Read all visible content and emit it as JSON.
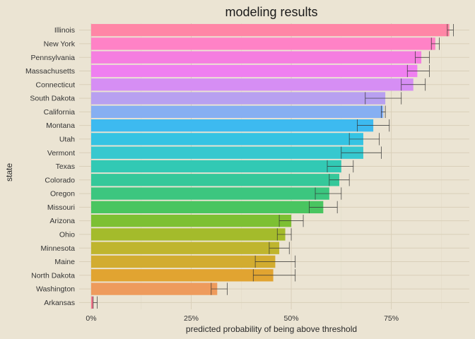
{
  "chart_data": {
    "type": "bar",
    "orientation": "horizontal",
    "title": "modeling results",
    "xlabel": "predicted probability of being above threshold",
    "ylabel": "state",
    "xlim": [
      -0.03,
      0.945
    ],
    "xticks": [
      0,
      0.25,
      0.5,
      0.75
    ],
    "xtick_labels": [
      "0%",
      "25%",
      "50%",
      "75%"
    ],
    "grid": true,
    "legend": "none",
    "categories": [
      "Illinois",
      "New York",
      "Pennsylvania",
      "Massachusetts",
      "Connecticut",
      "South Dakota",
      "California",
      "Montana",
      "Utah",
      "Vermont",
      "Texas",
      "Colorado",
      "Oregon",
      "Missouri",
      "Arizona",
      "Ohio",
      "Minnesota",
      "Maine",
      "North Dakota",
      "Washington",
      "Arkansas"
    ],
    "values": [
      0.895,
      0.86,
      0.825,
      0.815,
      0.805,
      0.735,
      0.73,
      0.705,
      0.68,
      0.68,
      0.625,
      0.62,
      0.595,
      0.58,
      0.5,
      0.485,
      0.47,
      0.46,
      0.455,
      0.315,
      0.005
    ],
    "error_low": [
      0.89,
      0.85,
      0.81,
      0.79,
      0.775,
      0.685,
      0.725,
      0.665,
      0.645,
      0.625,
      0.59,
      0.595,
      0.56,
      0.545,
      0.47,
      0.465,
      0.445,
      0.41,
      0.405,
      0.3,
      0.005
    ],
    "error_high": [
      0.905,
      0.87,
      0.845,
      0.845,
      0.835,
      0.775,
      0.735,
      0.745,
      0.72,
      0.725,
      0.655,
      0.645,
      0.625,
      0.615,
      0.53,
      0.5,
      0.495,
      0.51,
      0.51,
      0.34,
      0.015
    ],
    "colors": [
      "#ff86a6",
      "#ff82c6",
      "#f57ee0",
      "#ef7ff0",
      "#d68ef4",
      "#b8a0f0",
      "#86aff2",
      "#3dbaf0",
      "#35c3e3",
      "#37c8cf",
      "#32c9b4",
      "#35c89a",
      "#3cc67f",
      "#49c560",
      "#7dc033",
      "#a4bb2b",
      "#bfb52e",
      "#d2ac30",
      "#e1a431",
      "#ee9b5d",
      "#f4768e"
    ]
  }
}
